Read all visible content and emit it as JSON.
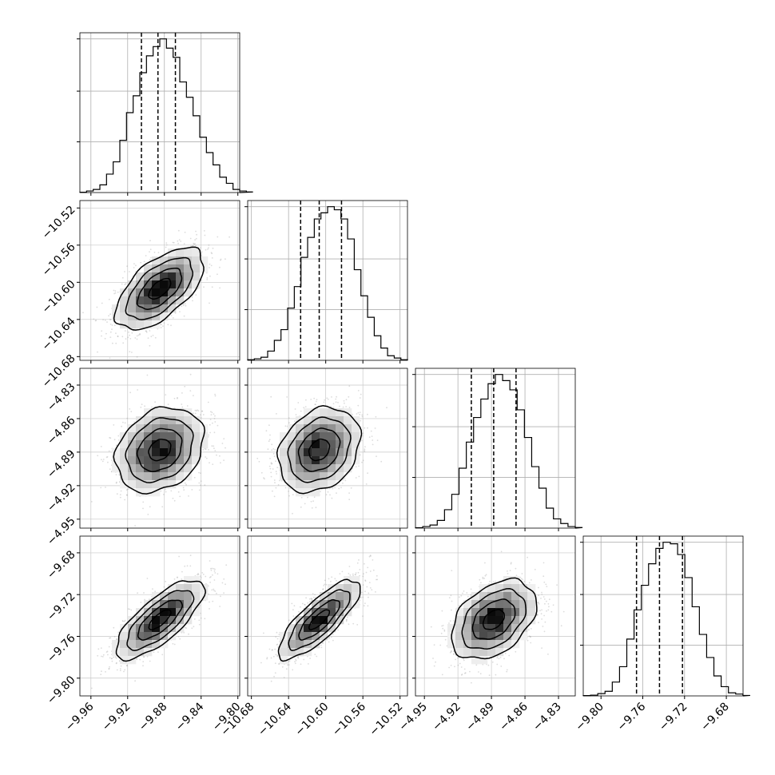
{
  "chart_data": {
    "type": "corner",
    "grid": true,
    "parameters": [
      {
        "range": [
          -9.972,
          -9.798
        ],
        "ticks": [
          -9.96,
          -9.92,
          -9.88,
          -9.84,
          -9.8
        ],
        "tick_labels": [
          "−9.96",
          "−9.92",
          "−9.88",
          "−9.84",
          "−9.80"
        ],
        "quantiles": [
          -9.905,
          -9.887,
          -9.868
        ],
        "hist_edges_start": -9.972,
        "hist_bin_width": 0.00725,
        "hist_counts": [
          0.2,
          1,
          2,
          5,
          12,
          20,
          34,
          52,
          63,
          78,
          89,
          95,
          100,
          94,
          88,
          72,
          62,
          50,
          36,
          26,
          18,
          10,
          6,
          2,
          1,
          0.4
        ],
        "hist_ymax": 104,
        "hist_ticks": [
          33,
          66,
          100
        ]
      },
      {
        "range": [
          -10.684,
          -10.512
        ],
        "ticks": [
          -10.68,
          -10.64,
          -10.6,
          -10.56,
          -10.52
        ],
        "tick_labels": [
          "−10.68",
          "−10.64",
          "−10.60",
          "−10.56",
          "−10.52"
        ],
        "quantiles": [
          -10.627,
          -10.607,
          -10.583
        ],
        "hist_edges_start": -10.684,
        "hist_bin_width": 0.00717,
        "hist_counts": [
          0.4,
          1,
          2,
          6,
          13,
          20,
          34,
          48,
          67,
          80,
          92,
          96,
          100,
          98,
          92,
          79,
          59,
          42,
          28,
          16,
          8,
          3,
          1.5,
          0.4
        ],
        "hist_ymax": 104,
        "hist_ticks": [
          33,
          66,
          100
        ]
      },
      {
        "range": [
          -4.958,
          -4.815
        ],
        "ticks": [
          -4.95,
          -4.92,
          -4.89,
          -4.86,
          -4.83
        ],
        "tick_labels": [
          "−4.95",
          "−4.92",
          "−4.89",
          "−4.86",
          "−4.83"
        ],
        "quantiles": [
          -4.908,
          -4.888,
          -4.868
        ],
        "hist_edges_start": -4.958,
        "hist_bin_width": 0.0065,
        "hist_counts": [
          0.3,
          1,
          2,
          5,
          12,
          22,
          39,
          56,
          72,
          84,
          94,
          100,
          96,
          90,
          77,
          59,
          40,
          26,
          13,
          6,
          3,
          1,
          0.4
        ],
        "hist_ymax": 104,
        "hist_ticks": [
          33,
          66,
          100
        ]
      },
      {
        "range": [
          -9.817,
          -9.664
        ],
        "ticks": [
          -9.8,
          -9.76,
          -9.72,
          -9.68
        ],
        "tick_labels": [
          "−9.80",
          "−9.76",
          "−9.72",
          "−9.68"
        ],
        "quantiles": [
          -9.766,
          -9.744,
          -9.722
        ],
        "hist_edges_start": -9.817,
        "hist_bin_width": 0.00695,
        "hist_counts": [
          0.2,
          0.5,
          1.5,
          3,
          9,
          19,
          37,
          56,
          72,
          86,
          96,
          100,
          99,
          92,
          77,
          58,
          40,
          25,
          13,
          6,
          2,
          1.2,
          0.3
        ],
        "hist_ymax": 104,
        "hist_ticks": [
          33,
          66,
          100
        ]
      }
    ],
    "pairs": [
      {
        "row": 1,
        "col": 0,
        "mean": [
          -9.885,
          -10.607
        ],
        "sd": [
          0.024,
          0.022
        ],
        "rho": 0.6
      },
      {
        "row": 2,
        "col": 0,
        "mean": [
          -9.885,
          -4.888
        ],
        "sd": [
          0.024,
          0.019
        ],
        "rho": 0.25
      },
      {
        "row": 2,
        "col": 1,
        "mean": [
          -10.607,
          -4.888
        ],
        "sd": [
          0.022,
          0.019
        ],
        "rho": 0.25
      },
      {
        "row": 3,
        "col": 0,
        "mean": [
          -9.885,
          -9.744
        ],
        "sd": [
          0.024,
          0.019
        ],
        "rho": 0.75
      },
      {
        "row": 3,
        "col": 1,
        "mean": [
          -10.607,
          -9.744
        ],
        "sd": [
          0.022,
          0.019
        ],
        "rho": 0.8
      },
      {
        "row": 3,
        "col": 2,
        "mean": [
          -4.888,
          -9.744
        ],
        "sd": [
          0.019,
          0.019
        ],
        "rho": 0.4
      }
    ],
    "contour_levels_sigma": [
      0.5,
      1.0,
      1.5,
      2.0
    ],
    "scatter_points_per_panel": 1400
  }
}
